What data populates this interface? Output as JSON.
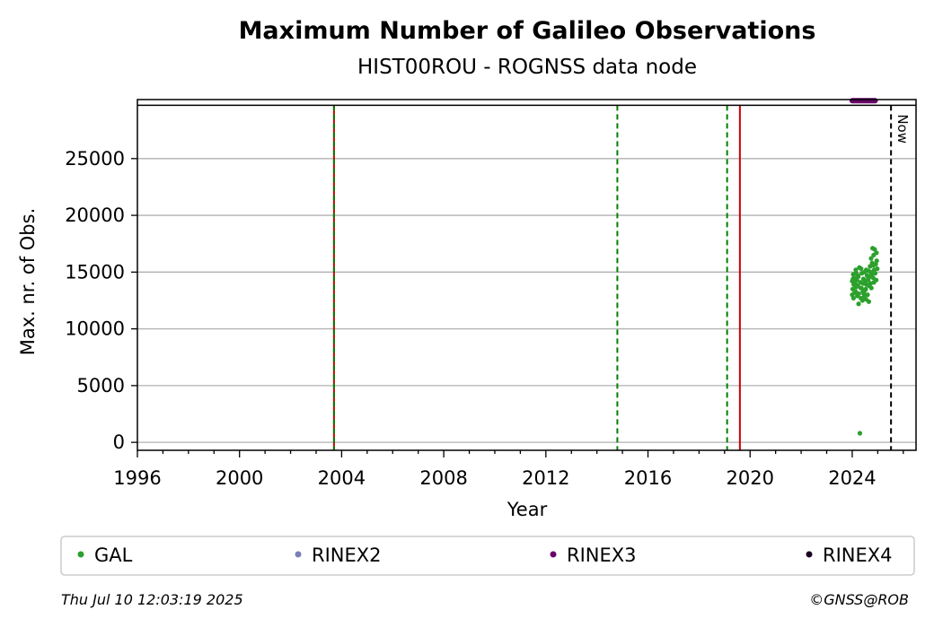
{
  "chart_data": {
    "type": "scatter",
    "title": "Maximum Number of Galileo Observations",
    "subtitle": "HIST00ROU - ROGNSS data node",
    "xlabel": "Year",
    "ylabel": "Max. nr. of Obs.",
    "xlim": [
      1996,
      2026.5
    ],
    "ylim": [
      -700,
      30200
    ],
    "x_ticks": [
      1996,
      2000,
      2004,
      2008,
      2012,
      2016,
      2020,
      2024
    ],
    "x_tick_labels": [
      "1996",
      "2000",
      "2004",
      "2008",
      "2012",
      "2016",
      "2020",
      "2024"
    ],
    "y_ticks": [
      0,
      5000,
      10000,
      15000,
      20000,
      25000
    ],
    "y_tick_labels": [
      "0",
      "5000",
      "10000",
      "15000",
      "20000",
      "25000"
    ],
    "grid": "y",
    "upper_band_y": 29700,
    "vertical_lines": [
      {
        "x": 2003.7,
        "style": "solid",
        "color": "#cc0000"
      },
      {
        "x": 2003.7,
        "style": "dashed",
        "color": "#008000"
      },
      {
        "x": 2014.8,
        "style": "dashed",
        "color": "#008000"
      },
      {
        "x": 2019.1,
        "style": "dashed",
        "color": "#008000"
      },
      {
        "x": 2019.6,
        "style": "solid",
        "color": "#cc0000"
      },
      {
        "x": 2025.52,
        "style": "dashed",
        "color": "#000000",
        "label": "Now"
      }
    ],
    "series": [
      {
        "name": "GAL",
        "color": "#2ca02c",
        "points": [
          [
            2024.0,
            14200
          ],
          [
            2024.02,
            13500
          ],
          [
            2024.04,
            14800
          ],
          [
            2024.06,
            13900
          ],
          [
            2024.08,
            14500
          ],
          [
            2024.1,
            13200
          ],
          [
            2024.12,
            14000
          ],
          [
            2024.14,
            15200
          ],
          [
            2024.16,
            13700
          ],
          [
            2024.18,
            14300
          ],
          [
            2024.2,
            12900
          ],
          [
            2024.22,
            13800
          ],
          [
            2024.24,
            14600
          ],
          [
            2024.26,
            13100
          ],
          [
            2024.28,
            15400
          ],
          [
            2024.3,
            800
          ],
          [
            2024.32,
            14100
          ],
          [
            2024.34,
            12700
          ],
          [
            2024.36,
            13600
          ],
          [
            2024.38,
            14900
          ],
          [
            2024.4,
            12500
          ],
          [
            2024.42,
            13300
          ],
          [
            2024.44,
            14400
          ],
          [
            2024.46,
            12800
          ],
          [
            2024.48,
            15000
          ],
          [
            2024.5,
            13400
          ],
          [
            2024.52,
            14200
          ],
          [
            2024.54,
            12600
          ],
          [
            2024.56,
            13900
          ],
          [
            2024.58,
            14700
          ],
          [
            2024.6,
            13000
          ],
          [
            2024.62,
            14300
          ],
          [
            2024.64,
            15100
          ],
          [
            2024.66,
            13800
          ],
          [
            2024.68,
            14600
          ],
          [
            2024.7,
            15500
          ],
          [
            2024.72,
            14000
          ],
          [
            2024.74,
            16200
          ],
          [
            2024.76,
            14800
          ],
          [
            2024.78,
            15800
          ],
          [
            2024.8,
            17100
          ],
          [
            2024.82,
            14500
          ],
          [
            2024.84,
            16500
          ],
          [
            2024.86,
            15200
          ],
          [
            2024.88,
            17000
          ],
          [
            2024.9,
            14900
          ],
          [
            2024.92,
            15700
          ],
          [
            2024.94,
            14300
          ],
          [
            2024.96,
            16000
          ],
          [
            2024.98,
            15300
          ],
          [
            2024.0,
            13000
          ],
          [
            2024.05,
            12700
          ],
          [
            2024.15,
            14900
          ],
          [
            2024.25,
            12200
          ],
          [
            2024.35,
            15300
          ],
          [
            2024.45,
            13100
          ],
          [
            2024.55,
            15200
          ],
          [
            2024.65,
            12400
          ],
          [
            2024.75,
            13600
          ],
          [
            2024.85,
            14100
          ],
          [
            2024.95,
            16700
          ],
          [
            2024.03,
            14400
          ],
          [
            2024.13,
            13300
          ],
          [
            2024.23,
            14700
          ],
          [
            2024.33,
            13600
          ],
          [
            2024.43,
            14000
          ],
          [
            2024.53,
            13500
          ],
          [
            2024.63,
            14400
          ],
          [
            2024.73,
            15000
          ],
          [
            2024.83,
            15600
          ]
        ]
      },
      {
        "name": "RINEX2",
        "color": "#7b7fb8",
        "points": []
      },
      {
        "name": "RINEX3",
        "color": "#6a006a",
        "range": [
          2024.0,
          2024.9
        ],
        "y": 30100
      },
      {
        "name": "RINEX4",
        "color": "#1a0020",
        "points": []
      }
    ],
    "legend": {
      "placement": "bottom",
      "entries": [
        "GAL",
        "RINEX2",
        "RINEX3",
        "RINEX4"
      ]
    }
  },
  "footer": {
    "timestamp": "Thu Jul 10 12:03:19 2025",
    "credit": "©GNSS@ROB"
  }
}
